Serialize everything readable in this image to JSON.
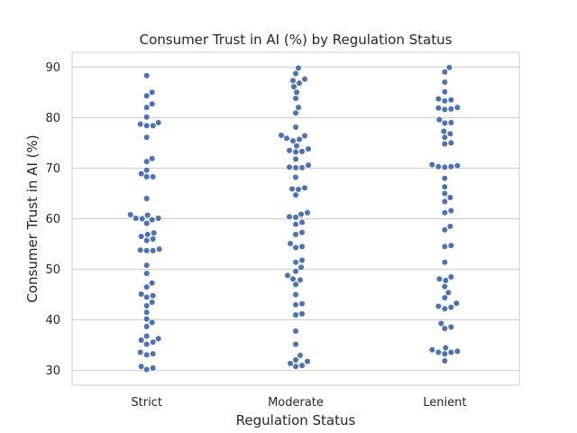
{
  "chart_data": {
    "type": "scatter",
    "subtype": "swarm",
    "title": "Consumer Trust in AI (%) by Regulation Status",
    "xlabel": "Regulation Status",
    "ylabel": "Consumer Trust in AI (%)",
    "categories": [
      "Strict",
      "Moderate",
      "Lenient"
    ],
    "ylim": [
      27.1,
      92.9
    ],
    "yticks": [
      30,
      40,
      50,
      60,
      70,
      80,
      90
    ],
    "grid": "horizontal",
    "marker_color": "#4c72b0",
    "series": [
      {
        "category": "Strict",
        "values": [
          88.3,
          85.0,
          84.3,
          82.7,
          82.0,
          80.1,
          79.0,
          78.7,
          78.4,
          78.4,
          76.1,
          71.9,
          71.3,
          69.6,
          68.9,
          68.3,
          68.3,
          64.0,
          60.8,
          60.7,
          60.1,
          60.1,
          60.0,
          59.8,
          59.1,
          57.2,
          56.9,
          56.5,
          56.0,
          55.7,
          54.0,
          53.8,
          53.7,
          53.7,
          50.8,
          49.2,
          47.3,
          46.5,
          45.1,
          44.8,
          44.5,
          43.5,
          42.8,
          41.5,
          40.2,
          39.5,
          38.7,
          36.8,
          36.3,
          36.0,
          35.6,
          35.2,
          33.6,
          33.3,
          33.1,
          30.8,
          30.5,
          30.2
        ]
      },
      {
        "category": "Moderate",
        "values": [
          89.8,
          88.7,
          87.6,
          87.3,
          86.8,
          86.1,
          85.0,
          83.8,
          82.0,
          80.9,
          78.1,
          76.5,
          76.4,
          75.9,
          75.7,
          75.4,
          74.4,
          73.8,
          73.5,
          73.3,
          73.2,
          71.8,
          70.6,
          70.2,
          70.1,
          70.1,
          68.2,
          66.1,
          65.9,
          65.8,
          64.7,
          61.2,
          60.9,
          60.4,
          60.3,
          59.3,
          58.9,
          57.3,
          56.9,
          55.1,
          54.5,
          54.3,
          51.8,
          51.4,
          50.4,
          49.6,
          48.8,
          48.1,
          47.9,
          47.0,
          45.0,
          43.2,
          43.0,
          41.2,
          41.0,
          37.8,
          35.2,
          33.0,
          32.1,
          31.8,
          31.4,
          31.0,
          30.8
        ]
      },
      {
        "category": "Lenient",
        "values": [
          89.9,
          89.0,
          87.0,
          85.1,
          83.7,
          83.5,
          83.3,
          82.0,
          81.9,
          81.7,
          81.6,
          79.6,
          79.0,
          78.9,
          77.3,
          76.8,
          76.1,
          75.0,
          74.8,
          70.7,
          70.5,
          70.3,
          70.3,
          70.2,
          68.0,
          66.3,
          65.0,
          64.2,
          63.4,
          61.6,
          61.2,
          58.5,
          57.8,
          54.7,
          54.5,
          51.4,
          48.5,
          48.1,
          47.8,
          46.6,
          45.4,
          44.4,
          43.3,
          42.7,
          42.5,
          42.2,
          39.3,
          38.6,
          38.3,
          34.5,
          34.1,
          33.8,
          33.6,
          33.6,
          33.3,
          31.9
        ]
      }
    ]
  }
}
